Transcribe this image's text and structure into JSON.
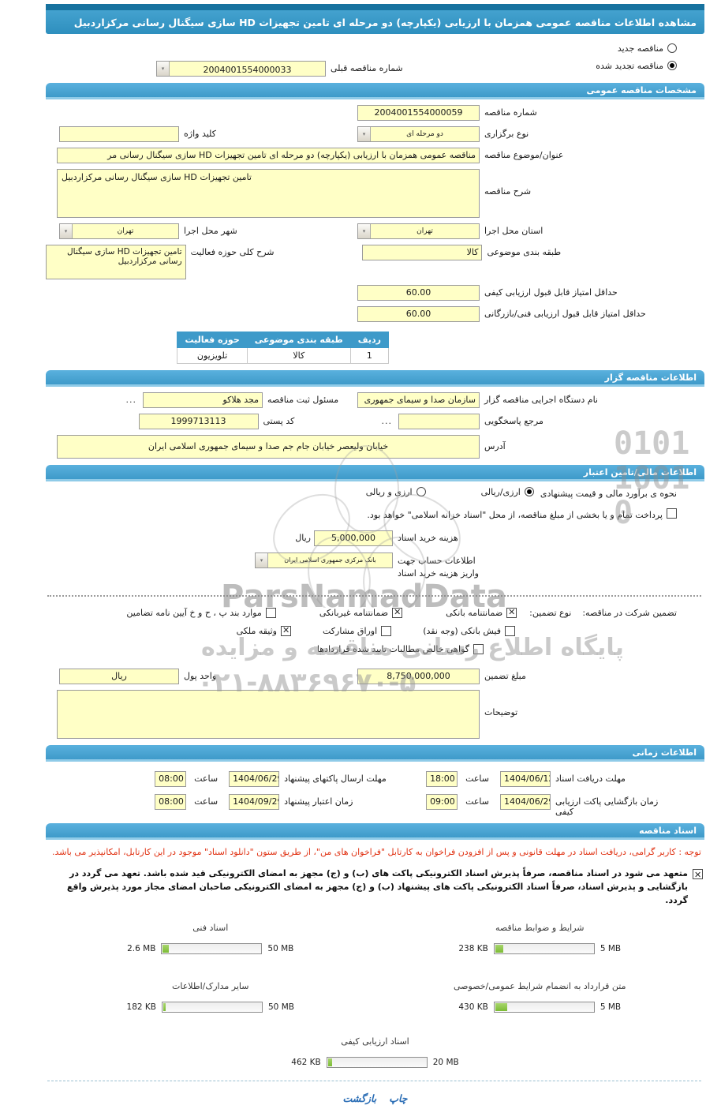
{
  "title": "مشاهده اطلاعات مناقصه عمومی همزمان با ارزیابی (یکپارچه) دو مرحله ای تامین تجهیزات HD سازی سیگنال رسانی مرکزاردبیل",
  "renew": {
    "new_label": "مناقصه جدید",
    "new_selected": false,
    "renewed_label": "مناقصه تجدید شده",
    "renewed_selected": true,
    "prev_number_label": "شماره مناقصه قبلی",
    "prev_number": "2004001554000033"
  },
  "sections": {
    "general": "مشخصات مناقصه عمومی",
    "agency": "اطلاعات مناقصه گزار",
    "financial": "اطلاعات مالی/تامین اعتبار",
    "timing": "اطلاعات زمانی",
    "documents": "اسناد مناقصه"
  },
  "general": {
    "number_label": "شماره مناقصه",
    "number": "2004001554000059",
    "type_label": "نوع برگزاری",
    "type": "دو مرحله ای",
    "keyword_label": "کلید واژه",
    "keyword": "",
    "subject_label": "عنوان/موضوع مناقصه",
    "subject": "مناقصه عمومی همزمان با ارزیابی (یکپارچه) دو مرحله ای تامین تجهیزات HD سازی سیگنال رسانی مر",
    "desc_label": "شرح مناقصه",
    "desc": "تامین تجهیزات HD سازی سیگنال رسانی مرکزاردبیل",
    "province_label": "استان محل اجرا",
    "province": "تهران",
    "city_label": "شهر محل اجرا",
    "city": "تهران",
    "category_label": "طبقه بندی موضوعی",
    "category": "کالا",
    "activity_label": "شرح کلی حوزه فعالیت",
    "activity": "تامین تجهیزات HD سازی سیگنال رسانی مرکزاردبیل",
    "min_qual_label": "حداقل امتیاز قابل قبول ارزیابی کیفی",
    "min_qual": "60.00",
    "min_tech_label": "حداقل امتیاز قابل قبول ارزیابی فنی/بازرگانی",
    "min_tech": "60.00",
    "table": {
      "headers": [
        "ردیف",
        "طبقه بندی موضوعی",
        "حوزه فعالیت"
      ],
      "row": [
        "1",
        "کالا",
        "تلویزیون"
      ]
    }
  },
  "agency": {
    "org_label": "نام دستگاه اجرایی مناقصه گزار",
    "org": "سازمان صدا و سیمای جمهوری",
    "registrar_label": "مسئول ثبت مناقصه",
    "registrar": "مجد هلاکو",
    "more": "...",
    "contact_label": "مرجع پاسخگویی",
    "contact": "",
    "postal_label": "کد پستی",
    "postal": "1999713113",
    "address_label": "آدرس",
    "address": "خیابان ولیعصر خیابان جام جم صدا و سیمای جمهوری اسلامی ایران"
  },
  "financial": {
    "estimate_label": "نحوه ی برآورد مالی و قیمت پیشنهادی",
    "rial_label": "ارزی/ریالی",
    "rial_selected": true,
    "both_label": "ارزی و ریالی",
    "both_selected": false,
    "treasury_label": "پرداخت تمام و یا بخشی از مبلغ مناقصه، از محل \"اسناد خزانه اسلامی\" خواهد بود.",
    "treasury_checked": false,
    "doc_fee_label": "هزینه خرید اسناد",
    "doc_fee": "5,000,000",
    "doc_fee_currency": "ریال",
    "account_label": "اطلاعات حساب جهت واریز هزینه خرید اسناد",
    "account": "بانک مرکزی جمهوری اسلامی ایران",
    "guarantee_title": "تضمین شرکت در مناقصه:",
    "guarantee_type_label": "نوع تضمین:",
    "guarantee_options": [
      {
        "label": "ضمانتنامه بانکی",
        "checked": true
      },
      {
        "label": "ضمانتنامه غیربانکی",
        "checked": true
      },
      {
        "label": "موارد بند پ ، ح و خ آیین نامه تضامین",
        "checked": false
      },
      {
        "label": "فیش بانکی (وجه نقد)",
        "checked": false
      },
      {
        "label": "اوراق مشارکت",
        "checked": false
      },
      {
        "label": "وثیقه ملکی",
        "checked": true
      },
      {
        "label": "گواهی خالص مطالبات تایید شده قراردادها",
        "checked": false
      }
    ],
    "amount_label": "مبلغ تضمین",
    "amount": "8,750,000,000",
    "currency_label": "واحد پول",
    "currency_value": "ریال",
    "notes_label": "توضیحات",
    "notes": ""
  },
  "timing": {
    "rows": [
      {
        "label": "مهلت دریافت اسناد",
        "date": "1404/06/12",
        "hour_label": "ساعت",
        "time": "18:00"
      },
      {
        "label": "مهلت ارسال پاکتهای پیشنهاد",
        "date": "1404/06/29",
        "hour_label": "ساعت",
        "time": "08:00"
      },
      {
        "label": "زمان بازگشایی پاکت ارزیابی کیفی",
        "date": "1404/06/29",
        "hour_label": "ساعت",
        "time": "09:00"
      },
      {
        "label": "زمان اعتبار پیشنهاد",
        "date": "1404/09/29",
        "hour_label": "ساعت",
        "time": "08:00"
      }
    ]
  },
  "documents": {
    "notice": "توجه : کاربر گرامی، دریافت اسناد در مهلت قانونی و پس از افزودن فراخوان به کارتابل \"فراخوان های من\"، از طریق ستون \"دانلود اسناد\" موجود در این کارتابل، امکانپذیر می باشد.",
    "commitment": "متعهد می شود در اسناد مناقصه، صرفاً پذیرش اسناد الکترونیکی پاکت های (ب) و (ج) مجهز به امضای الکترونیکی قید شده باشد. تعهد می گردد در بازگشایی و پذیرش اسناد، صرفاً اسناد الکترونیکی پاکت های پیشنهاد (ب) و (ج) مجهز به امضای الکترونیکی صاحبان امضای مجاز مورد پذیرش واقع گردد.",
    "commitment_checked": true,
    "uploads": [
      {
        "label": "شرایط و ضوابط مناقصه",
        "current": "238 KB",
        "max": "5 MB",
        "percent": 8
      },
      {
        "label": "اسناد فنی",
        "current": "2.6 MB",
        "max": "50 MB",
        "percent": 6
      },
      {
        "label": "متن قرارداد به انضمام شرایط عمومی/خصوصی",
        "current": "430 KB",
        "max": "5 MB",
        "percent": 12
      },
      {
        "label": "سایر مدارک/اطلاعات",
        "current": "182 KB",
        "max": "50 MB",
        "percent": 2
      },
      {
        "label": "اسناد ارزیابی کیفی",
        "current": "462 KB",
        "max": "20 MB",
        "percent": 4
      }
    ]
  },
  "footer": {
    "print": "چاپ",
    "back": "بازگشت"
  },
  "watermark": {
    "latin": "ParsNamadData",
    "persian": "پایگاه اطلاع رسانی مناقصه و مزایده",
    "phone": "۰۲۱-۸۸۳۶۹۶۷۰-۵",
    "digits_line1": "0101",
    "digits_line2": "1001",
    "digits_line3": "0"
  },
  "colors": {
    "header_blue": "#3E9AC9",
    "field_yellow": "#FFFFC6",
    "progress_green": "#7CBB35",
    "note_red": "#E03011",
    "link_blue": "#2A6DB5"
  }
}
